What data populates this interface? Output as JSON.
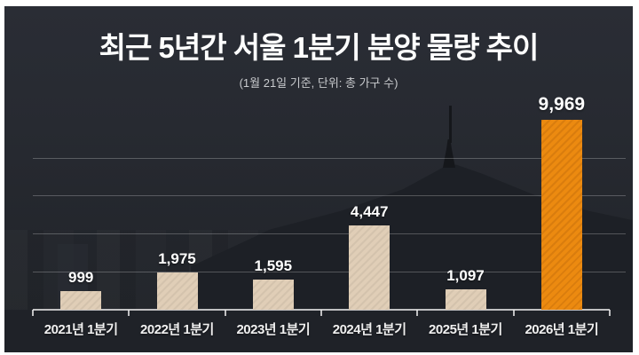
{
  "window": {
    "background": "#ffffff"
  },
  "chart_data": {
    "type": "bar",
    "title": "최근 5년간 서울 1분기 분양 물량 추이",
    "subtitle": "(1월 21일 기준, 단위: 총 가구 수)",
    "categories": [
      "2021년 1분기",
      "2022년 1분기",
      "2023년 1분기",
      "2024년 1분기",
      "2025년 1분기",
      "2026년 1분기"
    ],
    "values": [
      999,
      1975,
      1595,
      4447,
      1097,
      9969
    ],
    "value_labels": [
      "999",
      "1,975",
      "1,595",
      "4,447",
      "1,097",
      "9,969"
    ],
    "highlight_index": 5,
    "xlabel": "",
    "ylabel": "",
    "ylim": [
      0,
      10000
    ],
    "gridline_values": [
      2000,
      4000,
      6000,
      8000
    ],
    "grid": "horizontal, unlabeled",
    "legend": "none",
    "colors": {
      "bar_fill": "#e0ceb7",
      "highlight_fill": "#ec8a10",
      "panel_background": "#262a31",
      "title_text": "#ffffff",
      "subtitle_text": "#c9cbce",
      "value_text": "#ffffff",
      "category_text": "#f0f0f0",
      "gridline": "#ffffff40",
      "axis": "#e8e8e8cc"
    }
  }
}
